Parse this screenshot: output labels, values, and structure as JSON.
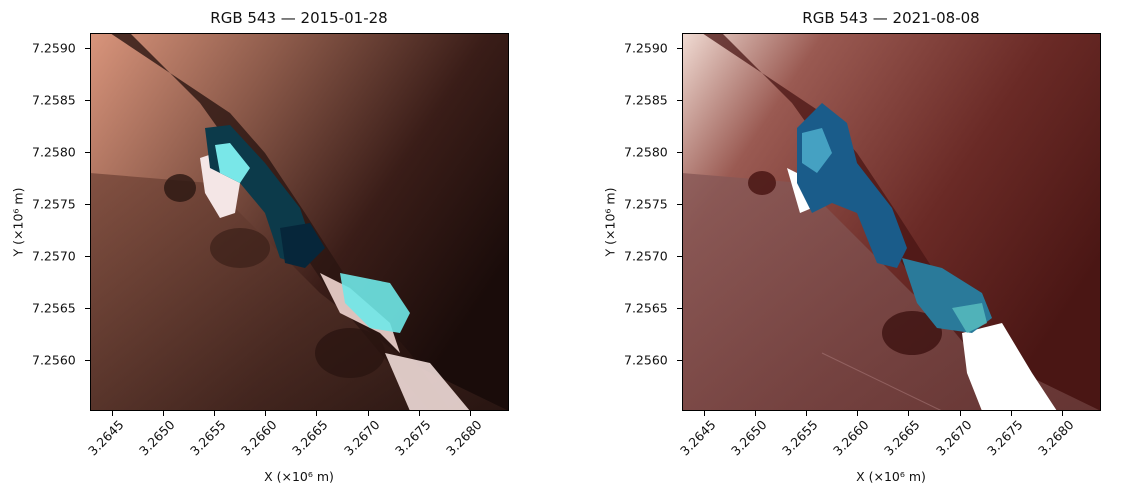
{
  "figure": {
    "panels": [
      {
        "title": "RGB 543 — 2015-01-28",
        "xlabel": "X (×10⁶ m)",
        "ylabel": "Y (×10⁶ m)",
        "palette": {
          "land_light": "#d9957c",
          "land_mid": "#8c5a4a",
          "land_dark": "#2a1512",
          "water": "#0c3a4a",
          "water_bright": "#7ff0f0",
          "snow": "#f4e6e6"
        }
      },
      {
        "title": "RGB 543 — 2021-08-08",
        "xlabel": "X (×10⁶ m)",
        "ylabel": "Y (×10⁶ m)",
        "palette": {
          "land_light": "#f1dcd4",
          "land_mid": "#8a4a48",
          "land_dark": "#4a1614",
          "water": "#1a5c8a",
          "water_bright": "#4aa8c8",
          "snow": "#ffffff"
        }
      }
    ],
    "xticks": [
      "3.2645",
      "3.2650",
      "3.2655",
      "3.2660",
      "3.2665",
      "3.2670",
      "3.2675",
      "3.2680"
    ],
    "yticks": [
      "7.2590",
      "7.2585",
      "7.2580",
      "7.2575",
      "7.2570",
      "7.2565",
      "7.2560"
    ]
  }
}
